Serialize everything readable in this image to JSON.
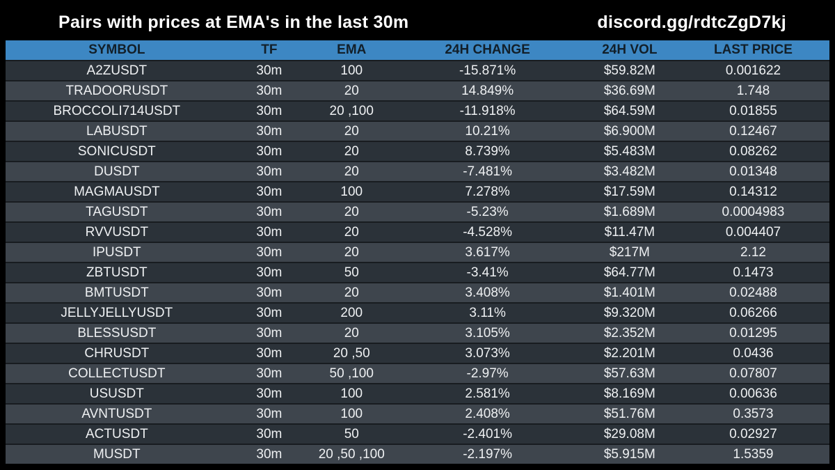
{
  "header": {
    "title": "Pairs with prices at EMA's in the last 30m",
    "link": "discord.gg/rdtcZgD7kj"
  },
  "colors": {
    "background": "#000000",
    "header_bar": "#3d87c3",
    "header_text": "#121f29",
    "row_dark": "#2b3239",
    "row_light": "#3e454d",
    "row_separator": "#181c20",
    "cell_text": "#eef0f2",
    "title_text": "#ffffff"
  },
  "chart_data": {
    "type": "table",
    "title": "Pairs with prices at EMA's in the last 30m",
    "columns": [
      "SYMBOL",
      "TF",
      "EMA",
      "24H CHANGE",
      "24H VOL",
      "LAST PRICE"
    ],
    "column_widths": [
      "27%",
      "10%",
      "10%",
      "23%",
      "11.5%",
      "18.5%"
    ],
    "rows": [
      [
        "A2ZUSDT",
        "30m",
        "100",
        "-15.871%",
        "$59.82M",
        "0.001622"
      ],
      [
        "TRADOORUSDT",
        "30m",
        "20",
        "14.849%",
        "$36.69M",
        "1.748"
      ],
      [
        "BROCCOLI714USDT",
        "30m",
        "20 ,100",
        "-11.918%",
        "$64.59M",
        "0.01855"
      ],
      [
        "LABUSDT",
        "30m",
        "20",
        "10.21%",
        "$6.900M",
        "0.12467"
      ],
      [
        "SONICUSDT",
        "30m",
        "20",
        "8.739%",
        "$5.483M",
        "0.08262"
      ],
      [
        "DUSDT",
        "30m",
        "20",
        "-7.481%",
        "$3.482M",
        "0.01348"
      ],
      [
        "MAGMAUSDT",
        "30m",
        "100",
        "7.278%",
        "$17.59M",
        "0.14312"
      ],
      [
        "TAGUSDT",
        "30m",
        "20",
        "-5.23%",
        "$1.689M",
        "0.0004983"
      ],
      [
        "RVVUSDT",
        "30m",
        "20",
        "-4.528%",
        "$11.47M",
        "0.004407"
      ],
      [
        "IPUSDT",
        "30m",
        "20",
        "3.617%",
        "$217M",
        "2.12"
      ],
      [
        "ZBTUSDT",
        "30m",
        "50",
        "-3.41%",
        "$64.77M",
        "0.1473"
      ],
      [
        "BMTUSDT",
        "30m",
        "20",
        "3.408%",
        "$1.401M",
        "0.02488"
      ],
      [
        "JELLYJELLYUSDT",
        "30m",
        "200",
        "3.11%",
        "$9.320M",
        "0.06266"
      ],
      [
        "BLESSUSDT",
        "30m",
        "20",
        "3.105%",
        "$2.352M",
        "0.01295"
      ],
      [
        "CHRUSDT",
        "30m",
        "20 ,50",
        "3.073%",
        "$2.201M",
        "0.0436"
      ],
      [
        "COLLECTUSDT",
        "30m",
        "50 ,100",
        "-2.97%",
        "$57.63M",
        "0.07807"
      ],
      [
        "USUSDT",
        "30m",
        "100",
        "2.581%",
        "$8.169M",
        "0.00636"
      ],
      [
        "AVNTUSDT",
        "30m",
        "100",
        "2.408%",
        "$51.76M",
        "0.3573"
      ],
      [
        "ACTUSDT",
        "30m",
        "50",
        "-2.401%",
        "$29.08M",
        "0.02927"
      ],
      [
        "MUSDT",
        "30m",
        "20 ,50 ,100",
        "-2.197%",
        "$5.915M",
        "1.5359"
      ]
    ]
  }
}
